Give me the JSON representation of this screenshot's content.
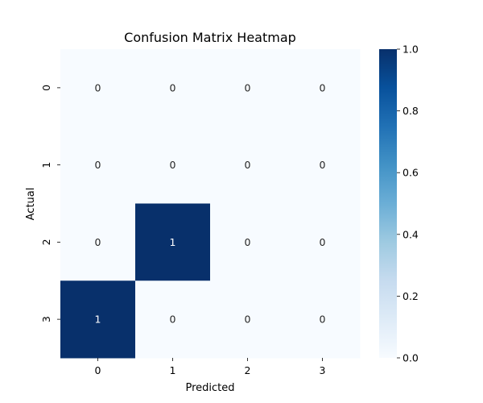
{
  "chart_data": {
    "type": "heatmap",
    "title": "Confusion Matrix Heatmap",
    "xlabel": "Predicted",
    "ylabel": "Actual",
    "x_categories": [
      "0",
      "1",
      "2",
      "3"
    ],
    "y_categories": [
      "0",
      "1",
      "2",
      "3"
    ],
    "values": [
      [
        0,
        0,
        0,
        0
      ],
      [
        0,
        0,
        0,
        0
      ],
      [
        0,
        1,
        0,
        0
      ],
      [
        1,
        0,
        0,
        0
      ]
    ],
    "annotations": true,
    "colormap": "Blues",
    "colorbar": {
      "range": [
        0,
        1
      ],
      "ticks": [
        "0.0",
        "0.2",
        "0.4",
        "0.6",
        "0.8",
        "1.0"
      ],
      "low_color": "#f7fbff",
      "high_color": "#08306b"
    }
  }
}
